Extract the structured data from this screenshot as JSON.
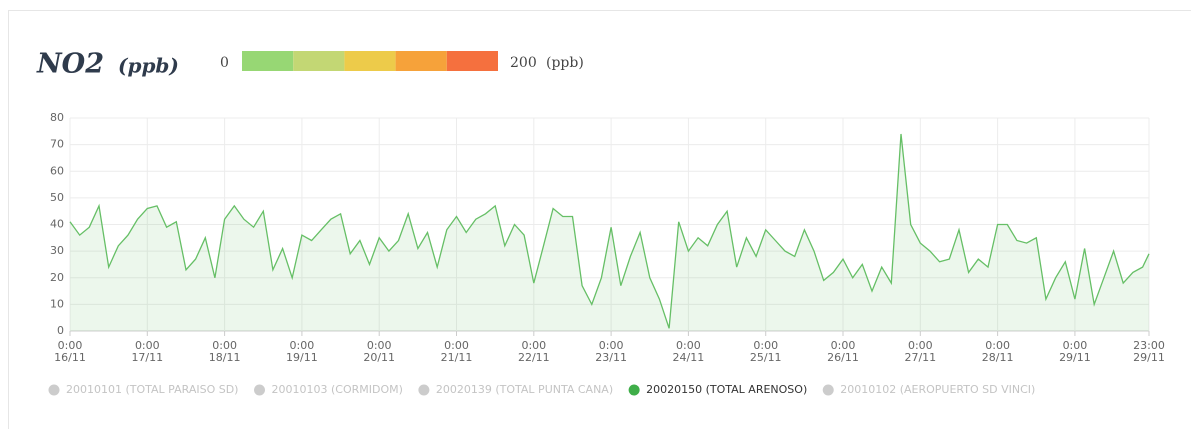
{
  "chart_data": {
    "type": "line",
    "title": "NO2",
    "unit": "(ppb)",
    "scale": {
      "min_label": "0",
      "max_label": "200",
      "unit": "(ppb)",
      "colors": [
        "#97d774",
        "#c3d774",
        "#edcb4a",
        "#f6a23a",
        "#f5703e"
      ]
    },
    "xlim": [
      0,
      335
    ],
    "xticks": [
      {
        "value": 0,
        "label": "0:00"
      },
      {
        "value": 24,
        "label": "0:00"
      },
      {
        "value": 48,
        "label": "0:00"
      },
      {
        "value": 72,
        "label": "0:00"
      },
      {
        "value": 96,
        "label": "0:00"
      },
      {
        "value": 120,
        "label": "0:00"
      },
      {
        "value": 144,
        "label": "0:00"
      },
      {
        "value": 168,
        "label": "0:00"
      },
      {
        "value": 192,
        "label": "0:00"
      },
      {
        "value": 216,
        "label": "0:00"
      },
      {
        "value": 240,
        "label": "0:00"
      },
      {
        "value": 264,
        "label": "0:00"
      },
      {
        "value": 288,
        "label": "0:00"
      },
      {
        "value": 312,
        "label": "0:00"
      },
      {
        "value": 335,
        "label": "23:00"
      }
    ],
    "xtick_dates": [
      "16/11",
      "17/11",
      "18/11",
      "19/11",
      "20/11",
      "21/11",
      "22/11",
      "23/11",
      "24/11",
      "25/11",
      "26/11",
      "27/11",
      "28/11",
      "29/11",
      "29/11"
    ],
    "ylim": [
      0,
      80
    ],
    "yticks": [
      0,
      10,
      20,
      30,
      40,
      50,
      60,
      70,
      80
    ],
    "grid": true,
    "x": [
      0,
      3,
      6,
      9,
      12,
      15,
      18,
      21,
      24,
      27,
      30,
      33,
      36,
      39,
      42,
      45,
      48,
      51,
      54,
      57,
      60,
      63,
      66,
      69,
      72,
      75,
      78,
      81,
      84,
      87,
      90,
      93,
      96,
      99,
      102,
      105,
      108,
      111,
      114,
      117,
      120,
      123,
      126,
      129,
      132,
      135,
      138,
      141,
      144,
      147,
      150,
      153,
      156,
      159,
      162,
      165,
      168,
      171,
      174,
      177,
      180,
      183,
      186,
      189,
      192,
      195,
      198,
      201,
      204,
      207,
      210,
      213,
      216,
      219,
      222,
      225,
      228,
      231,
      234,
      237,
      240,
      243,
      246,
      249,
      252,
      255,
      258,
      261,
      264,
      267,
      270,
      273,
      276,
      279,
      282,
      285,
      288,
      291,
      294,
      297,
      300,
      303,
      306,
      309,
      312,
      315,
      318,
      321,
      324,
      327,
      330,
      333,
      335
    ],
    "series": [
      {
        "name": "20020150 (TOTAL ARENOSO)",
        "color": "#66bf66",
        "values": [
          41,
          36,
          39,
          47,
          24,
          32,
          36,
          42,
          46,
          47,
          39,
          41,
          23,
          27,
          35,
          20,
          42,
          47,
          42,
          39,
          45,
          23,
          31,
          20,
          36,
          34,
          38,
          42,
          44,
          29,
          34,
          25,
          35,
          30,
          34,
          44,
          31,
          37,
          24,
          38,
          43,
          37,
          42,
          44,
          47,
          32,
          40,
          36,
          18,
          32,
          46,
          43,
          43,
          17,
          10,
          20,
          39,
          17,
          28,
          37,
          20,
          12,
          1,
          41,
          30,
          35,
          32,
          40,
          45,
          24,
          35,
          28,
          38,
          34,
          30,
          28,
          38,
          30,
          19,
          22,
          27,
          20,
          25,
          15,
          24,
          18,
          74,
          40,
          33,
          30,
          26,
          27,
          38,
          22,
          27,
          24,
          40,
          40,
          34,
          33,
          35,
          12,
          20,
          26,
          12,
          31,
          10,
          20,
          30,
          18,
          22,
          24,
          29
        ]
      }
    ],
    "legend": [
      {
        "name": "20010101 (TOTAL PARAISO SD)",
        "active": false
      },
      {
        "name": "20010103 (CORMIDOM)",
        "active": false
      },
      {
        "name": "20020139 (TOTAL PUNTA CANA)",
        "active": false
      },
      {
        "name": "20020150 (TOTAL ARENOSO)",
        "active": true
      },
      {
        "name": "20010102 (AEROPUERTO SD VINCI)",
        "active": false
      }
    ]
  }
}
